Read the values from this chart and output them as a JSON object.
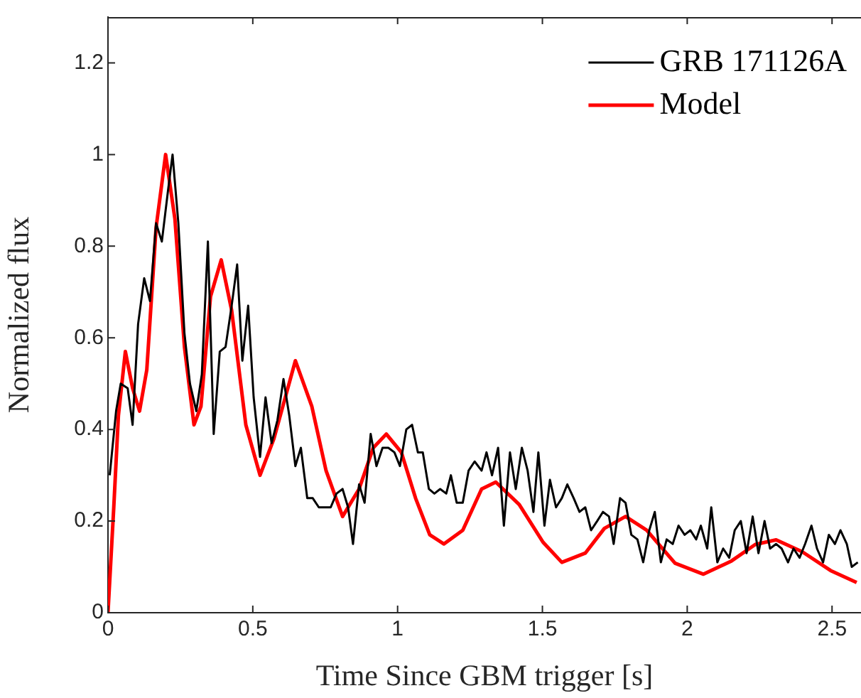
{
  "chart_data": {
    "type": "line",
    "xlabel": "Time Since GBM trigger [s]",
    "ylabel": "Normalized flux",
    "xlim": [
      0,
      2.6
    ],
    "xticks": [
      0,
      0.5,
      1,
      1.5,
      2,
      2.5
    ],
    "ylim": [
      0,
      1.3
    ],
    "yticks": [
      0,
      0.2,
      0.4,
      0.6,
      0.8,
      1,
      1.2
    ],
    "grid": false,
    "legend": "top right",
    "marker": "none",
    "line_style": "solid",
    "series": [
      {
        "name": "GRB 171126A",
        "color": "#000000",
        "x": [
          0.006,
          0.028,
          0.044,
          0.068,
          0.085,
          0.104,
          0.125,
          0.145,
          0.166,
          0.186,
          0.207,
          0.223,
          0.243,
          0.264,
          0.283,
          0.305,
          0.324,
          0.345,
          0.365,
          0.386,
          0.406,
          0.427,
          0.446,
          0.464,
          0.484,
          0.503,
          0.525,
          0.544,
          0.565,
          0.585,
          0.606,
          0.626,
          0.647,
          0.666,
          0.688,
          0.707,
          0.728,
          0.748,
          0.769,
          0.789,
          0.81,
          0.829,
          0.846,
          0.867,
          0.886,
          0.907,
          0.927,
          0.948,
          0.968,
          0.989,
          1.008,
          1.03,
          1.05,
          1.07,
          1.087,
          1.108,
          1.127,
          1.147,
          1.168,
          1.184,
          1.204,
          1.225,
          1.245,
          1.266,
          1.29,
          1.307,
          1.326,
          1.347,
          1.367,
          1.388,
          1.408,
          1.429,
          1.449,
          1.469,
          1.486,
          1.507,
          1.526,
          1.547,
          1.567,
          1.586,
          1.608,
          1.628,
          1.648,
          1.668,
          1.689,
          1.709,
          1.73,
          1.746,
          1.768,
          1.787,
          1.807,
          1.828,
          1.848,
          1.869,
          1.888,
          1.909,
          1.929,
          1.95,
          1.97,
          1.991,
          2.011,
          2.031,
          2.047,
          2.069,
          2.083,
          2.104,
          2.124,
          2.145,
          2.164,
          2.185,
          2.205,
          2.226,
          2.246,
          2.267,
          2.286,
          2.307,
          2.326,
          2.348,
          2.367,
          2.388,
          2.407,
          2.429,
          2.448,
          2.469,
          2.489,
          2.51,
          2.529,
          2.551,
          2.568,
          2.589
        ],
        "values": [
          0.3,
          0.44,
          0.5,
          0.49,
          0.41,
          0.63,
          0.73,
          0.68,
          0.85,
          0.81,
          0.92,
          1.0,
          0.85,
          0.61,
          0.5,
          0.44,
          0.52,
          0.81,
          0.39,
          0.57,
          0.58,
          0.67,
          0.76,
          0.55,
          0.67,
          0.47,
          0.34,
          0.47,
          0.37,
          0.42,
          0.51,
          0.43,
          0.32,
          0.36,
          0.25,
          0.25,
          0.23,
          0.23,
          0.23,
          0.26,
          0.27,
          0.23,
          0.15,
          0.28,
          0.24,
          0.39,
          0.32,
          0.36,
          0.36,
          0.35,
          0.32,
          0.4,
          0.41,
          0.35,
          0.35,
          0.27,
          0.26,
          0.27,
          0.26,
          0.3,
          0.24,
          0.24,
          0.31,
          0.33,
          0.31,
          0.35,
          0.3,
          0.36,
          0.19,
          0.35,
          0.27,
          0.36,
          0.31,
          0.22,
          0.35,
          0.19,
          0.29,
          0.23,
          0.25,
          0.28,
          0.25,
          0.22,
          0.23,
          0.18,
          0.2,
          0.22,
          0.21,
          0.15,
          0.25,
          0.24,
          0.17,
          0.16,
          0.11,
          0.18,
          0.22,
          0.11,
          0.16,
          0.15,
          0.19,
          0.17,
          0.18,
          0.16,
          0.19,
          0.14,
          0.23,
          0.11,
          0.14,
          0.12,
          0.18,
          0.2,
          0.13,
          0.21,
          0.13,
          0.2,
          0.14,
          0.15,
          0.14,
          0.11,
          0.14,
          0.12,
          0.15,
          0.19,
          0.14,
          0.11,
          0.17,
          0.15,
          0.18,
          0.15,
          0.1,
          0.11
        ]
      },
      {
        "name": "Model",
        "color": "#ff0000",
        "x": [
          0,
          0.02,
          0.036,
          0.06,
          0.085,
          0.109,
          0.134,
          0.166,
          0.199,
          0.231,
          0.264,
          0.297,
          0.321,
          0.354,
          0.391,
          0.427,
          0.476,
          0.525,
          0.573,
          0.647,
          0.704,
          0.753,
          0.81,
          0.867,
          0.916,
          0.961,
          1.013,
          1.062,
          1.111,
          1.16,
          1.225,
          1.29,
          1.339,
          1.42,
          1.502,
          1.567,
          1.648,
          1.714,
          1.787,
          1.86,
          1.958,
          2.056,
          2.153,
          2.235,
          2.307,
          2.397,
          2.495,
          2.585
        ],
        "values": [
          0,
          0.23,
          0.43,
          0.57,
          0.49,
          0.44,
          0.53,
          0.84,
          1.0,
          0.86,
          0.58,
          0.41,
          0.45,
          0.69,
          0.77,
          0.66,
          0.41,
          0.3,
          0.38,
          0.55,
          0.45,
          0.31,
          0.21,
          0.27,
          0.36,
          0.39,
          0.35,
          0.25,
          0.17,
          0.15,
          0.18,
          0.27,
          0.285,
          0.236,
          0.154,
          0.11,
          0.13,
          0.184,
          0.21,
          0.18,
          0.108,
          0.084,
          0.113,
          0.149,
          0.159,
          0.133,
          0.092,
          0.066
        ]
      }
    ]
  }
}
